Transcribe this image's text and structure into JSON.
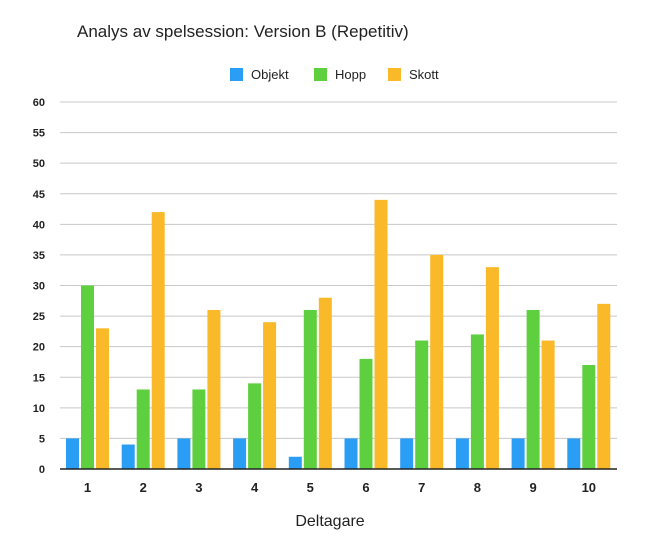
{
  "chart_data": {
    "type": "bar",
    "title": "Analys av spelsession: Version B (Repetitiv)",
    "xlabel": "Deltagare",
    "ylabel": "",
    "ylim": [
      0,
      60
    ],
    "yticks": [
      0,
      5,
      10,
      15,
      20,
      25,
      30,
      35,
      40,
      45,
      50,
      55,
      60
    ],
    "grid": true,
    "legend_position": "top-center",
    "categories": [
      "1",
      "2",
      "3",
      "4",
      "5",
      "6",
      "7",
      "8",
      "9",
      "10"
    ],
    "series": [
      {
        "name": "Objekt",
        "color": "#2a9df4",
        "values": [
          5,
          4,
          5,
          5,
          2,
          5,
          5,
          5,
          5,
          5
        ]
      },
      {
        "name": "Hopp",
        "color": "#5ecf3f",
        "values": [
          30,
          13,
          13,
          14,
          26,
          18,
          21,
          22,
          26,
          17
        ]
      },
      {
        "name": "Skott",
        "color": "#f9b928",
        "values": [
          23,
          42,
          26,
          24,
          28,
          44,
          35,
          33,
          21,
          27
        ]
      }
    ]
  }
}
